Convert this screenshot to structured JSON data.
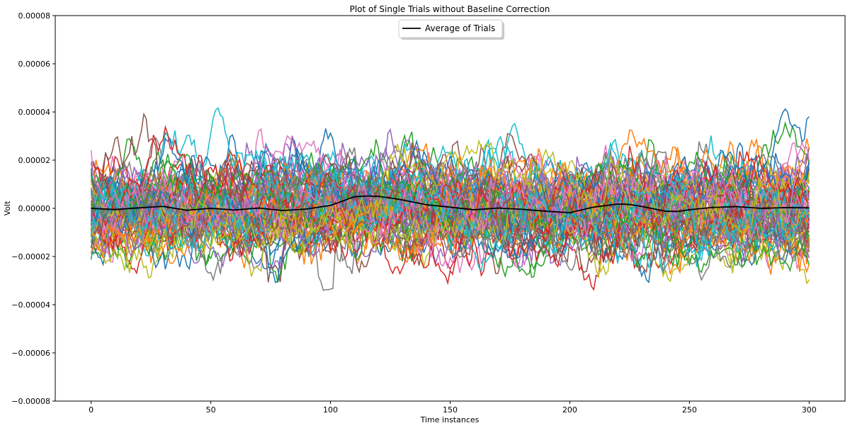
{
  "chart_data": {
    "type": "line",
    "title": "Plot of Single Trials without Baseline Correction",
    "xlabel": "Time instances",
    "ylabel": "Volt",
    "xlim": [
      -15,
      315
    ],
    "ylim": [
      -8e-05,
      8e-05
    ],
    "x_ticks": [
      0,
      50,
      100,
      150,
      200,
      250,
      300
    ],
    "x_tick_labels": [
      "0",
      "50",
      "100",
      "150",
      "200",
      "250",
      "300"
    ],
    "y_ticks": [
      -8e-05,
      -6e-05,
      -4e-05,
      -2e-05,
      0,
      2e-05,
      4e-05,
      6e-05,
      8e-05
    ],
    "y_tick_labels": [
      "−0.00008",
      "−0.00006",
      "−0.00004",
      "−0.00002",
      "0.00000",
      "0.00002",
      "0.00004",
      "0.00006",
      "0.00008"
    ],
    "grid": false,
    "legend": {
      "position": "top-center",
      "entries": [
        "Average of Trials"
      ]
    },
    "series_colors": [
      "#1f77b4",
      "#ff7f0e",
      "#2ca02c",
      "#d62728",
      "#9467bd",
      "#8c564b",
      "#e377c2",
      "#7f7f7f",
      "#bcbd22",
      "#17becf"
    ],
    "trials": {
      "count": 80,
      "x_start": 0,
      "x_end": 300,
      "approx_std": 1.1e-05,
      "approx_range": [
        -5.7e-05,
        5.1e-05
      ]
    },
    "series": [
      {
        "name": "Average of Trials",
        "color": "#000000",
        "x": [
          0,
          10,
          20,
          30,
          40,
          50,
          60,
          70,
          80,
          90,
          100,
          105,
          110,
          115,
          120,
          125,
          130,
          140,
          150,
          160,
          170,
          180,
          190,
          200,
          210,
          220,
          225,
          230,
          240,
          245,
          250,
          260,
          270,
          280,
          290,
          300
        ],
        "values": [
          0.0,
          -5e-07,
          2e-07,
          8e-07,
          -8e-07,
          0.0,
          -7e-07,
          1e-07,
          -9e-07,
          -3e-07,
          1.2e-06,
          3e-06,
          4.8e-06,
          5.1e-06,
          5e-06,
          4.3e-06,
          3.5e-06,
          1.5e-06,
          5e-07,
          -6e-07,
          1e-07,
          -4e-07,
          -1.2e-06,
          -1.8e-06,
          5e-07,
          1.8e-06,
          1.6e-06,
          8e-07,
          -1.2e-06,
          -1.3e-06,
          -6e-07,
          4e-07,
          7e-07,
          0.0,
          3e-07,
          2e-07
        ]
      }
    ]
  }
}
